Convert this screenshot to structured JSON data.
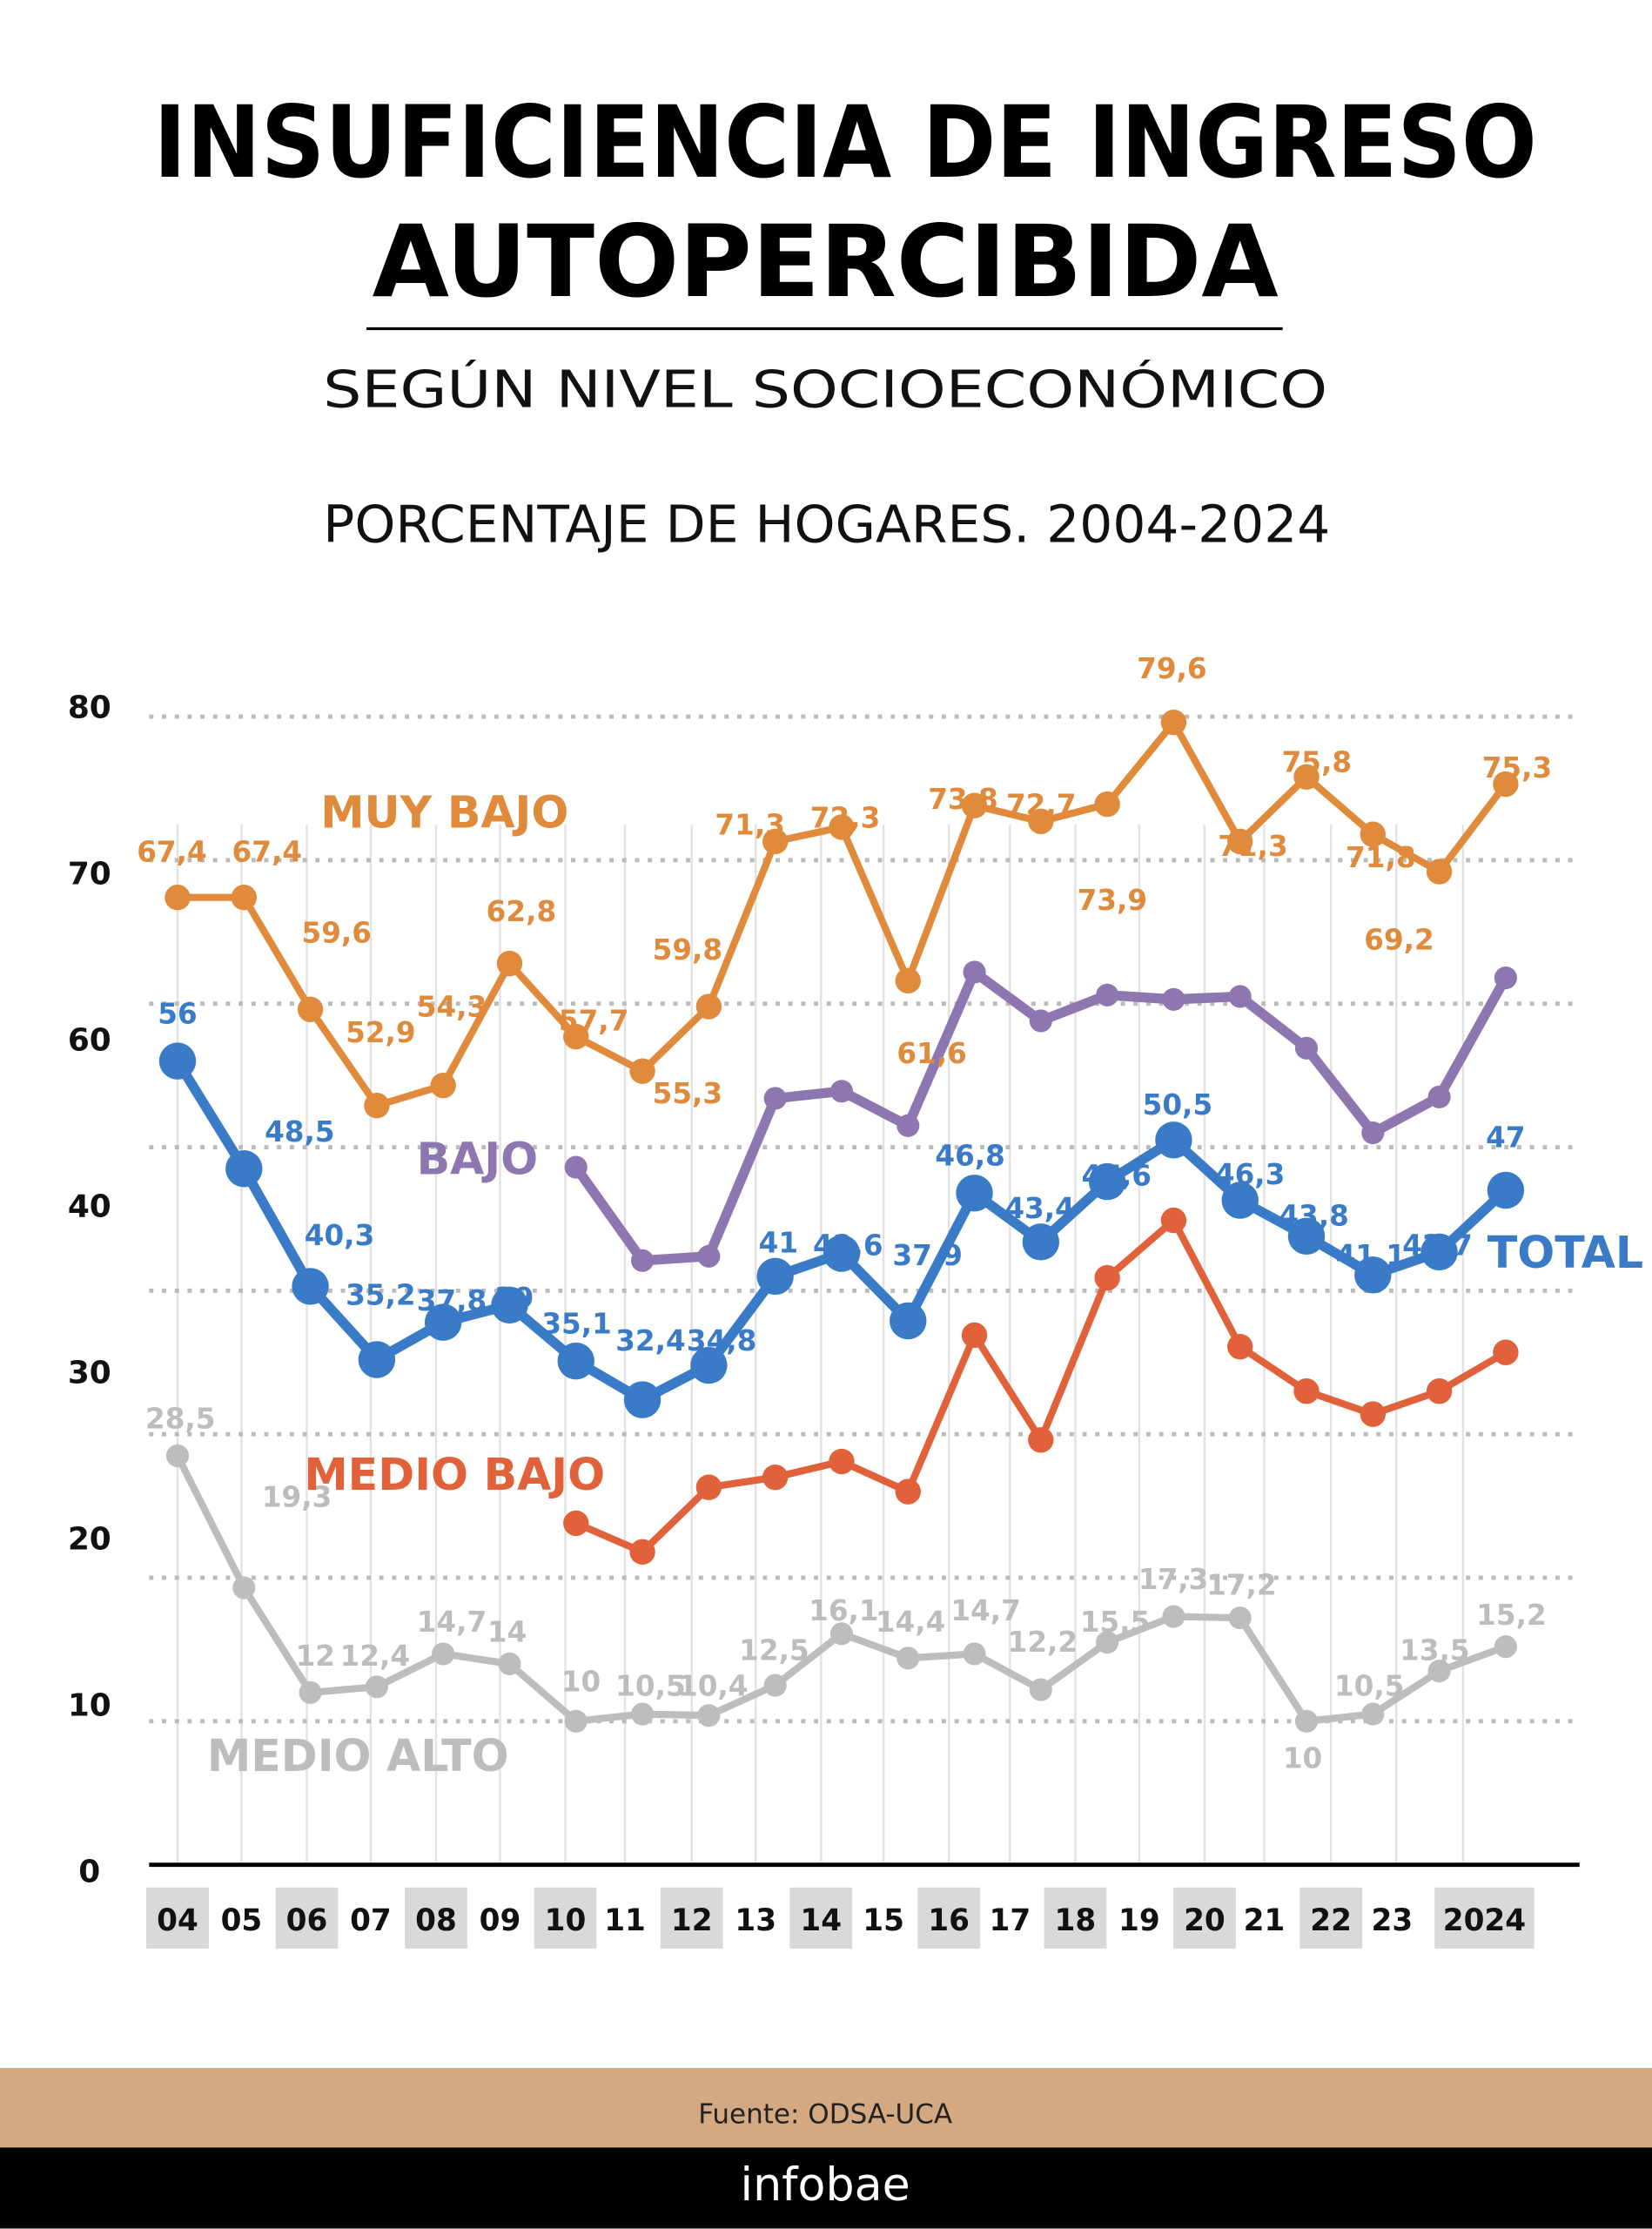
{
  "header": {
    "title_line1": "INSUFICIENCIA DE INGRESO",
    "title_line2": "AUTOPERCIBIDA",
    "subtitle": "SEGÚN NIVEL SOCIOECONÓMICO",
    "description": "PORCENTAJE DE HOGARES. 2004-2024"
  },
  "footer": {
    "source": "Fuente: ODSA-UCA",
    "brand": "infobae",
    "band_color": "#D4A982",
    "bar_color": "#000000"
  },
  "chart_data": {
    "type": "line",
    "title": "INSUFICIENCIA DE INGRESO AUTOPERCIBIDA",
    "subtitle": "SEGÚN NIVEL SOCIOECONÓMICO",
    "ylabel": "",
    "xlabel": "",
    "ylim": [
      0,
      80
    ],
    "grid": true,
    "y_tick_labels": [
      "80",
      "70",
      "60",
      "40",
      "30",
      "20",
      "10",
      "0"
    ],
    "x": [
      "04",
      "05",
      "06",
      "07",
      "08",
      "09",
      "10",
      "11",
      "12",
      "13",
      "14",
      "15",
      "16",
      "17",
      "18",
      "19",
      "20",
      "21",
      "22",
      "23",
      "2024"
    ],
    "x_tick_labels": [
      "04",
      "05",
      "06",
      "07",
      "08",
      "09",
      "10",
      "11",
      "12",
      "13",
      "14",
      "15",
      "16",
      "17",
      "18",
      "19",
      "20",
      "21",
      "22",
      "23",
      "2024"
    ],
    "series": [
      {
        "name": "MUY BAJO",
        "color": "#E08A3C",
        "values": [
          67.4,
          67.4,
          59.6,
          52.9,
          54.3,
          62.8,
          57.7,
          55.3,
          59.8,
          71.3,
          72.3,
          61.6,
          73.8,
          72.7,
          73.9,
          79.6,
          71.3,
          75.8,
          71.8,
          69.2,
          75.3
        ],
        "labels": [
          "67,4",
          "67,4",
          "59,6",
          "52,9",
          "54,3",
          "62,8",
          "57,7",
          "55,3",
          "59,8",
          "71,3",
          "72,3",
          "61,6",
          "73,8",
          "72,7",
          "73,9",
          "79,6",
          "71,3",
          "75,8",
          "71,8",
          "69,2",
          "75,3"
        ]
      },
      {
        "name": "BAJO",
        "color": "#8E77B0",
        "values": [
          null,
          null,
          null,
          null,
          null,
          null,
          48.6,
          42.1,
          42.4,
          53.4,
          53.9,
          51.5,
          62.2,
          58.8,
          60.6,
          60.3,
          60.5,
          56.9,
          51.0,
          53.5,
          61.8
        ]
      },
      {
        "name": "TOTAL",
        "color": "#3A7BC8",
        "values": [
          56,
          48.5,
          40.3,
          35.2,
          37.8,
          39,
          35.1,
          32.4,
          34.8,
          41,
          42.6,
          37.9,
          46.8,
          43.4,
          47.6,
          50.5,
          46.3,
          43.8,
          41.1,
          42.7,
          47
        ],
        "labels": [
          "56",
          "48,5",
          "40,3",
          "35,2",
          "37,8",
          "39",
          "35,1",
          "32,4",
          "34,8",
          "41",
          "42,6",
          "37,9",
          "46,8",
          "43,4",
          "47,6",
          "50,5",
          "46,3",
          "43,8",
          "41,1",
          "42,7",
          "47"
        ]
      },
      {
        "name": "MEDIO BAJO",
        "color": "#E0613A",
        "values": [
          null,
          null,
          null,
          null,
          null,
          null,
          23.8,
          21.8,
          26.3,
          27.0,
          28.1,
          26.0,
          36.9,
          29.6,
          40.9,
          44.9,
          36.1,
          33.0,
          31.4,
          33.0,
          35.7
        ]
      },
      {
        "name": "MEDIO ALTO",
        "color": "#BDBDBD",
        "values": [
          28.5,
          19.3,
          12,
          12.4,
          14.7,
          14,
          10,
          10.5,
          10.4,
          12.5,
          16.1,
          14.4,
          14.7,
          12.2,
          15.5,
          17.3,
          17.2,
          10,
          10.5,
          13.5,
          15.2
        ],
        "labels": [
          "28,5",
          "19,3",
          "12",
          "12,4",
          "14,7",
          "14",
          "10",
          "10,5",
          "10,4",
          "12,5",
          "16,1",
          "14,4",
          "14,7",
          "12,2",
          "15,5",
          "17,3",
          "17,2",
          "10",
          "10,5",
          "13,5",
          "15,2"
        ]
      }
    ]
  }
}
